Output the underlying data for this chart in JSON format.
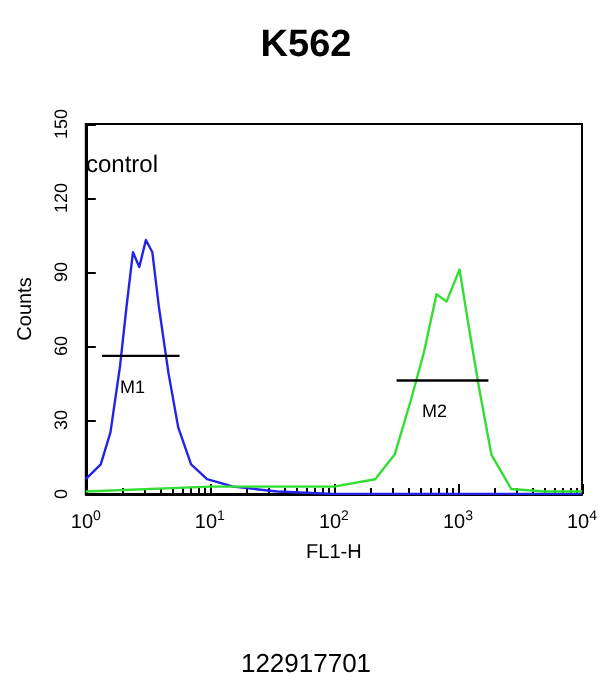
{
  "chart_data": {
    "type": "line",
    "title": "K562",
    "xlabel": "FL1-H",
    "ylabel": "Counts",
    "log": "x",
    "grid": false,
    "marker": "none",
    "line_style": "solid",
    "xlim": [
      1,
      10000
    ],
    "xticks": [
      {
        "value": 1,
        "label": "10$^{0}$"
      },
      {
        "value": 10,
        "label": "10$^{1}$"
      },
      {
        "value": 100,
        "label": "10$^{2}$"
      },
      {
        "value": 1000,
        "label": "10$^{3}$"
      },
      {
        "value": 10000,
        "label": "10$^{4}$"
      }
    ],
    "ylim": [
      0,
      150
    ],
    "yticks": [
      0,
      30,
      60,
      90,
      120,
      150
    ],
    "series": [
      {
        "color": "#2424e6",
        "x": [
          1,
          1.32,
          1.58,
          1.89,
          2.13,
          2.4,
          2.7,
          3.05,
          3.44,
          3.88,
          4.64,
          5.56,
          7.06,
          9.5,
          15.4,
          35,
          100,
          1000,
          10000
        ],
        "values": [
          6,
          12,
          25,
          52,
          76,
          98,
          92,
          103,
          98,
          76,
          49,
          27,
          12,
          6,
          3,
          1,
          0,
          0,
          0
        ]
      },
      {
        "color": "#33dd33",
        "x": [
          1,
          10,
          30,
          100,
          215,
          309,
          417,
          529,
          672,
          809,
          1030,
          1230,
          1480,
          1860,
          2690,
          5000,
          10000
        ],
        "values": [
          1,
          3,
          3,
          3,
          6,
          16,
          38,
          57,
          81,
          78,
          91,
          67,
          43,
          16,
          2,
          1,
          1
        ]
      },
      {
        "color": "#000000",
        "x": [
          1.35,
          5.7
        ],
        "values": [
          56,
          56
        ]
      },
      {
        "color": "#000000",
        "x": [
          320,
          1760
        ],
        "values": [
          46,
          46
        ]
      }
    ],
    "annotations": [
      "control",
      "M1",
      "M2",
      "122917701"
    ]
  }
}
